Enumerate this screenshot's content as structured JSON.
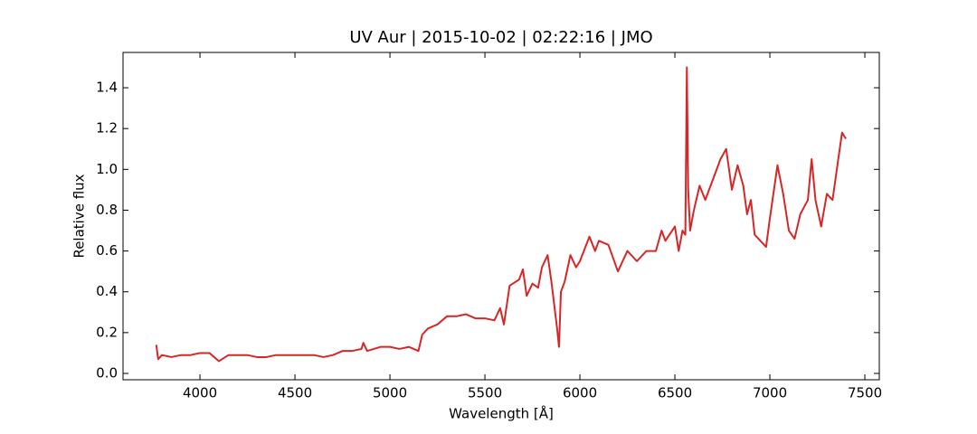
{
  "chart_data": {
    "type": "line",
    "title": "UV Aur | 2015-10-02 | 02:22:16 | JMO",
    "x_label": "Wavelength [Å]",
    "y_label": "Relative flux",
    "xlim": [
      3595,
      7576
    ],
    "ylim": [
      -0.031,
      1.573
    ],
    "xticks": [
      4000,
      4500,
      5000,
      5500,
      6000,
      6500,
      7000,
      7500
    ],
    "yticks": [
      {
        "value": 0,
        "label": "0.0"
      },
      0.2,
      0.4,
      0.6,
      0.8,
      {
        "value": 1,
        "label": "1.0"
      },
      1.2,
      1.4
    ],
    "series": [
      {
        "color": "#d62728",
        "x": [
          3770,
          3780,
          3800,
          3850,
          3900,
          3950,
          4000,
          4050,
          4100,
          4150,
          4200,
          4250,
          4300,
          4350,
          4400,
          4450,
          4500,
          4550,
          4600,
          4650,
          4700,
          4750,
          4800,
          4850,
          4860,
          4880,
          4950,
          5000,
          5050,
          5100,
          5150,
          5170,
          5200,
          5250,
          5300,
          5350,
          5400,
          5450,
          5500,
          5550,
          5580,
          5600,
          5630,
          5680,
          5700,
          5720,
          5750,
          5780,
          5800,
          5830,
          5850,
          5880,
          5890,
          5900,
          5920,
          5950,
          5980,
          6000,
          6050,
          6080,
          6100,
          6150,
          6200,
          6250,
          6300,
          6350,
          6400,
          6430,
          6450,
          6500,
          6520,
          6540,
          6555,
          6563,
          6570,
          6580,
          6600,
          6630,
          6660,
          6700,
          6740,
          6770,
          6800,
          6830,
          6860,
          6880,
          6900,
          6920,
          6950,
          6980,
          7000,
          7040,
          7070,
          7100,
          7130,
          7160,
          7200,
          7220,
          7240,
          7270,
          7300,
          7330,
          7360,
          7380,
          7400
        ],
        "values": [
          0.14,
          0.07,
          0.09,
          0.08,
          0.09,
          0.09,
          0.1,
          0.1,
          0.06,
          0.09,
          0.09,
          0.09,
          0.08,
          0.08,
          0.09,
          0.09,
          0.09,
          0.09,
          0.09,
          0.08,
          0.09,
          0.11,
          0.11,
          0.12,
          0.15,
          0.11,
          0.13,
          0.13,
          0.12,
          0.13,
          0.11,
          0.19,
          0.22,
          0.24,
          0.28,
          0.28,
          0.29,
          0.27,
          0.27,
          0.26,
          0.32,
          0.24,
          0.43,
          0.46,
          0.51,
          0.38,
          0.44,
          0.42,
          0.52,
          0.58,
          0.45,
          0.22,
          0.13,
          0.4,
          0.45,
          0.58,
          0.52,
          0.55,
          0.67,
          0.6,
          0.65,
          0.63,
          0.5,
          0.6,
          0.55,
          0.6,
          0.6,
          0.7,
          0.65,
          0.72,
          0.6,
          0.7,
          0.68,
          1.5,
          0.9,
          0.7,
          0.8,
          0.92,
          0.85,
          0.95,
          1.05,
          1.1,
          0.9,
          1.02,
          0.92,
          0.78,
          0.85,
          0.68,
          0.65,
          0.62,
          0.76,
          1.02,
          0.88,
          0.7,
          0.66,
          0.78,
          0.85,
          1.05,
          0.85,
          0.72,
          0.88,
          0.85,
          1.05,
          1.18,
          1.15
        ]
      }
    ]
  }
}
